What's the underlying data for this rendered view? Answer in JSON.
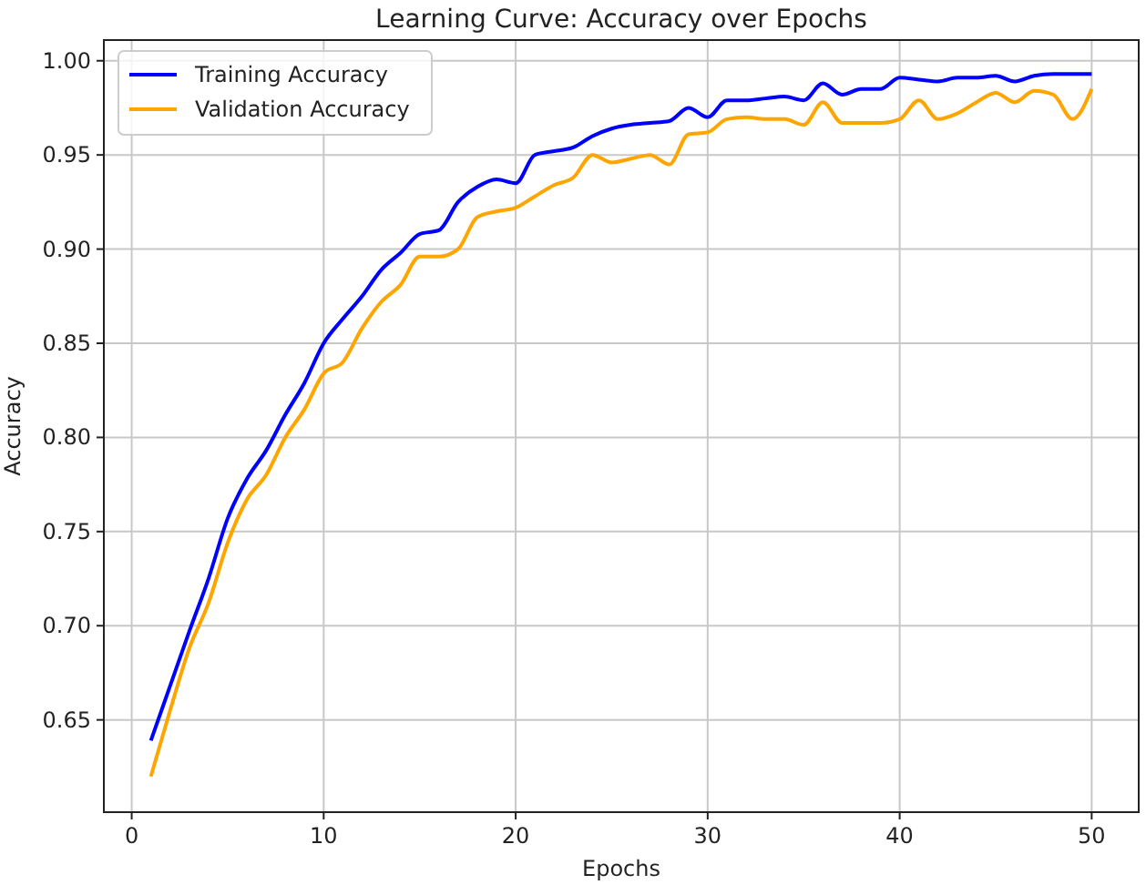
{
  "chart_data": {
    "type": "line",
    "title": "Learning Curve: Accuracy over Epochs",
    "xlabel": "Epochs",
    "ylabel": "Accuracy",
    "x": [
      1,
      2,
      3,
      4,
      5,
      6,
      7,
      8,
      9,
      10,
      11,
      12,
      13,
      14,
      15,
      16,
      17,
      18,
      19,
      20,
      21,
      22,
      23,
      24,
      25,
      26,
      27,
      28,
      29,
      30,
      31,
      32,
      33,
      34,
      35,
      36,
      37,
      38,
      39,
      40,
      41,
      42,
      43,
      44,
      45,
      46,
      47,
      48,
      49,
      50
    ],
    "series": [
      {
        "name": "Training Accuracy",
        "color": "#0000ff",
        "values": [
          0.639,
          0.668,
          0.697,
          0.725,
          0.757,
          0.778,
          0.793,
          0.812,
          0.829,
          0.85,
          0.863,
          0.875,
          0.889,
          0.898,
          0.908,
          0.91,
          0.925,
          0.933,
          0.937,
          0.935,
          0.95,
          0.952,
          0.954,
          0.96,
          0.964,
          0.966,
          0.967,
          0.968,
          0.975,
          0.97,
          0.979,
          0.979,
          0.98,
          0.981,
          0.979,
          0.988,
          0.982,
          0.985,
          0.985,
          0.991,
          0.99,
          0.989,
          0.991,
          0.991,
          0.992,
          0.989,
          0.992,
          0.993,
          0.993,
          0.993
        ]
      },
      {
        "name": "Validation Accuracy",
        "color": "#ffa500",
        "values": [
          0.62,
          0.655,
          0.688,
          0.712,
          0.744,
          0.767,
          0.78,
          0.8,
          0.815,
          0.834,
          0.84,
          0.858,
          0.872,
          0.881,
          0.896,
          0.896,
          0.9,
          0.917,
          0.92,
          0.922,
          0.928,
          0.934,
          0.938,
          0.95,
          0.946,
          0.948,
          0.95,
          0.945,
          0.961,
          0.962,
          0.969,
          0.97,
          0.969,
          0.969,
          0.966,
          0.978,
          0.967,
          0.967,
          0.967,
          0.969,
          0.979,
          0.969,
          0.972,
          0.978,
          0.983,
          0.978,
          0.984,
          0.982,
          0.969,
          0.985
        ]
      }
    ],
    "xlim": [
      -1.45,
      52.45
    ],
    "xticks": [
      0,
      10,
      20,
      30,
      40,
      50
    ],
    "ylim": [
      0.601,
      1.011
    ],
    "yticks": [
      {
        "value": 0.65,
        "label": "0.65"
      },
      {
        "value": 0.7,
        "label": "0.70"
      },
      {
        "value": 0.75,
        "label": "0.75"
      },
      {
        "value": 0.8,
        "label": "0.80"
      },
      {
        "value": 0.85,
        "label": "0.85"
      },
      {
        "value": 0.9,
        "label": "0.90"
      },
      {
        "value": 0.95,
        "label": "0.95"
      },
      {
        "value": 1.0,
        "label": "1.00"
      }
    ],
    "grid": true,
    "legend": "top left",
    "marker": "none",
    "line_style": "solid"
  }
}
